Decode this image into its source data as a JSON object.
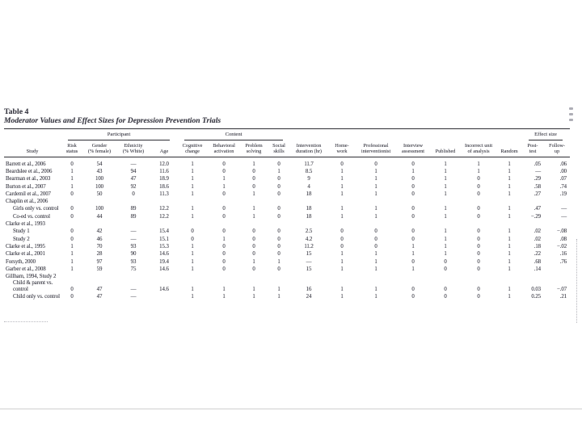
{
  "page": {
    "table_label": "Table 4",
    "table_caption": "Moderator Values and Effect Sizes for Depression Prevention Trials"
  },
  "colors": {
    "ink": "#3a3a44",
    "rule": "#2d2d33",
    "artifact": "#9a9aa4",
    "page_bg": "#ffffff"
  },
  "table": {
    "groups": {
      "participant": "Participant",
      "content": "Content",
      "effect_size": "Effect size"
    },
    "columns": [
      "Study",
      "Risk\nstatus",
      "Gender\n(% female)",
      "Ethnicity\n(% White)",
      "Age",
      "Cognitive\nchange",
      "Behavioral\nactivation",
      "Problem\nsolving",
      "Social\nskills",
      "Intervention\nduration (hr)",
      "Home-\nwork",
      "Professional\ninterventionist",
      "Interview\nassessment",
      "Published",
      "Incorrect unit\nof analysis",
      "Random",
      "Post-\ntest",
      "Follow-\nup"
    ],
    "rows": [
      {
        "label": "Barrett et al., 2006",
        "indent": 0,
        "cells": [
          "0",
          "54",
          "—",
          "12.0",
          "1",
          "0",
          "1",
          "0",
          "11.7",
          "0",
          "0",
          "0",
          "1",
          "1",
          "1",
          ".05",
          ".06"
        ]
      },
      {
        "label": "Beardslee et al., 2006",
        "indent": 0,
        "cells": [
          "1",
          "43",
          "94",
          "11.6",
          "1",
          "0",
          "0",
          "1",
          "8.5",
          "1",
          "1",
          "1",
          "1",
          "1",
          "1",
          "—",
          ".00"
        ]
      },
      {
        "label": "Bearman et al., 2003",
        "indent": 0,
        "cells": [
          "1",
          "100",
          "47",
          "18.9",
          "1",
          "1",
          "0",
          "0",
          "9",
          "1",
          "1",
          "0",
          "1",
          "0",
          "1",
          ".29",
          ".07"
        ]
      },
      {
        "label": "Burton et al., 2007",
        "indent": 0,
        "cells": [
          "1",
          "100",
          "92",
          "18.6",
          "1",
          "1",
          "0",
          "0",
          "4",
          "1",
          "1",
          "0",
          "1",
          "0",
          "1",
          ".58",
          ".74"
        ]
      },
      {
        "label": "Cardemil et al., 2007",
        "indent": 0,
        "cells": [
          "0",
          "50",
          "0",
          "11.3",
          "1",
          "0",
          "1",
          "0",
          "18",
          "1",
          "1",
          "0",
          "1",
          "0",
          "1",
          ".27",
          ".19"
        ]
      },
      {
        "label": "Chaplin et al., 2006",
        "indent": 0,
        "cells": []
      },
      {
        "label": "Girls only vs. control",
        "indent": 1,
        "cells": [
          "0",
          "100",
          "89",
          "12.2",
          "1",
          "0",
          "1",
          "0",
          "18",
          "1",
          "1",
          "0",
          "1",
          "0",
          "1",
          ".47",
          "—"
        ]
      },
      {
        "label": "Co-ed vs. control",
        "indent": 1,
        "cells": [
          "0",
          "44",
          "89",
          "12.2",
          "1",
          "0",
          "1",
          "0",
          "18",
          "1",
          "1",
          "0",
          "1",
          "0",
          "1",
          "−.29",
          "—"
        ]
      },
      {
        "label": "Clarke et al., 1993",
        "indent": 0,
        "cells": []
      },
      {
        "label": "Study 1",
        "indent": 1,
        "cells": [
          "0",
          "42",
          "—",
          "15.4",
          "0",
          "0",
          "0",
          "0",
          "2.5",
          "0",
          "0",
          "0",
          "1",
          "0",
          "1",
          ".02",
          "−.08"
        ]
      },
      {
        "label": "Study 2",
        "indent": 1,
        "cells": [
          "0",
          "46",
          "—",
          "15.1",
          "0",
          "1",
          "0",
          "0",
          "4.2",
          "0",
          "0",
          "0",
          "1",
          "0",
          "1",
          ".02",
          ".08"
        ]
      },
      {
        "label": "Clarke et al., 1995",
        "indent": 0,
        "cells": [
          "1",
          "70",
          "93",
          "15.3",
          "1",
          "0",
          "0",
          "0",
          "11.2",
          "0",
          "0",
          "1",
          "1",
          "0",
          "1",
          ".18",
          "−.02"
        ]
      },
      {
        "label": "Clarke et al., 2001",
        "indent": 0,
        "cells": [
          "1",
          "28",
          "90",
          "14.6",
          "1",
          "0",
          "0",
          "0",
          "15",
          "1",
          "1",
          "1",
          "1",
          "0",
          "1",
          ".22",
          ".16"
        ]
      },
      {
        "label": "Forsyth, 2000",
        "indent": 0,
        "cells": [
          "1",
          "97",
          "93",
          "19.4",
          "1",
          "0",
          "1",
          "1",
          "—",
          "1",
          "1",
          "0",
          "0",
          "0",
          "1",
          ".68",
          ".76"
        ]
      },
      {
        "label": "Garber et al., 2008",
        "indent": 0,
        "cells": [
          "1",
          "59",
          "75",
          "14.6",
          "1",
          "0",
          "0",
          "0",
          "15",
          "1",
          "1",
          "1",
          "0",
          "0",
          "1",
          ".14",
          ""
        ]
      },
      {
        "label": "Gillham, 1994, Study 2",
        "indent": 0,
        "cells": []
      },
      {
        "label": "Child & parent vs.\ncontrol",
        "indent": 1,
        "cells": [
          "0",
          "47",
          "—",
          "14.6",
          "1",
          "1",
          "1",
          "1",
          "16",
          "1",
          "1",
          "0",
          "0",
          "0",
          "1",
          "0.03",
          "−.07"
        ]
      },
      {
        "label": "Child only vs. control",
        "indent": 1,
        "cells": [
          "0",
          "47",
          "—",
          "",
          "1",
          "1",
          "1",
          "1",
          "24",
          "1",
          "1",
          "0",
          "0",
          "0",
          "1",
          "0.25",
          ".21"
        ]
      }
    ]
  }
}
